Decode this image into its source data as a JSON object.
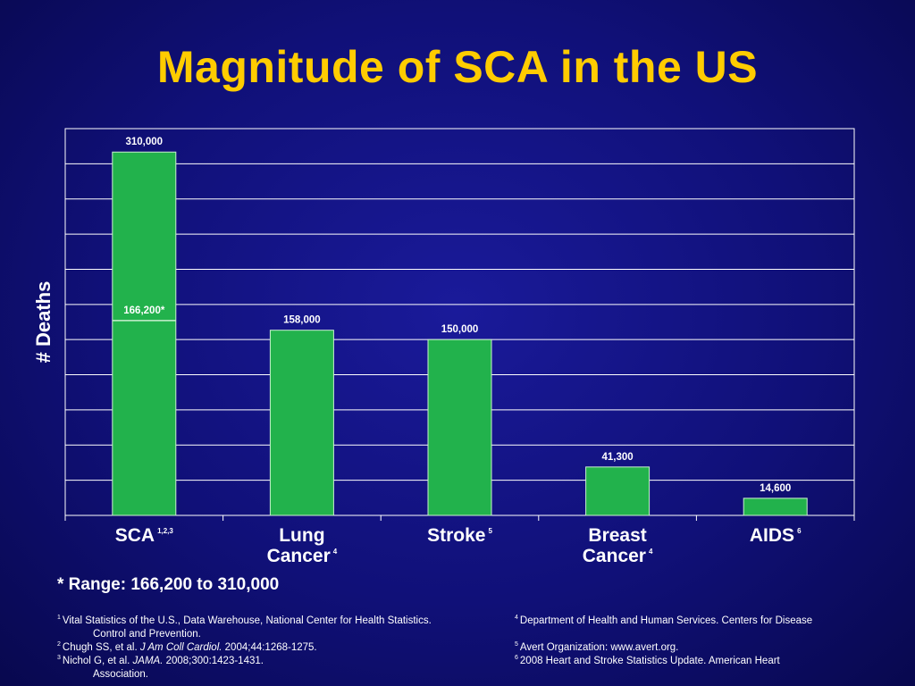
{
  "title": "Magnitude of SCA in the US",
  "chart_data": {
    "type": "bar",
    "ylabel": "# Deaths",
    "categories": [
      {
        "lines": [
          "SCA"
        ],
        "sup": "1,2,3"
      },
      {
        "lines": [
          "Lung",
          "Cancer"
        ],
        "sup": "4"
      },
      {
        "lines": [
          "Stroke"
        ],
        "sup": "5"
      },
      {
        "lines": [
          "Breast",
          "Cancer"
        ],
        "sup": "4"
      },
      {
        "lines": [
          "AIDS"
        ],
        "sup": "6"
      }
    ],
    "values": [
      310000,
      158000,
      150000,
      41300,
      14600
    ],
    "value_labels": [
      "310,000",
      "158,000",
      "150,000",
      "41,300",
      "14,600"
    ],
    "range_low": {
      "category_index": 0,
      "value": 166200,
      "label": "166,200*"
    },
    "ylim": [
      0,
      330000
    ],
    "y_grid_step": 30000,
    "grid": true,
    "colors": {
      "bar": "#22b24c",
      "bar_edge": "#c9f0cf",
      "grid": "#ffffff",
      "axis_label": "#ffffff"
    }
  },
  "footnote": "* Range: 166,200 to 310,000",
  "references": [
    {
      "num": "1",
      "text": "Vital Statistics of the U.S., Data Warehouse, National Center for Health Statistics.",
      "cont": "Control and Prevention."
    },
    {
      "num": "2",
      "pre": "Chugh SS, et  al. ",
      "ital": "J Am Coll Cardiol.",
      "post": " 2004;44:1268-1275."
    },
    {
      "num": "3",
      "pre": "Nichol G, et al. ",
      "ital": "JAMA.",
      "post": " 2008;300:1423-1431.",
      "cont": "Association."
    },
    {
      "num": "4",
      "text": "Department of Health and Human Services. Centers for Disease"
    },
    {
      "num": "5",
      "text": "Avert Organization: www.avert.org."
    },
    {
      "num": "6",
      "text": "2008 Heart and Stroke Statistics Update. American Heart"
    }
  ]
}
